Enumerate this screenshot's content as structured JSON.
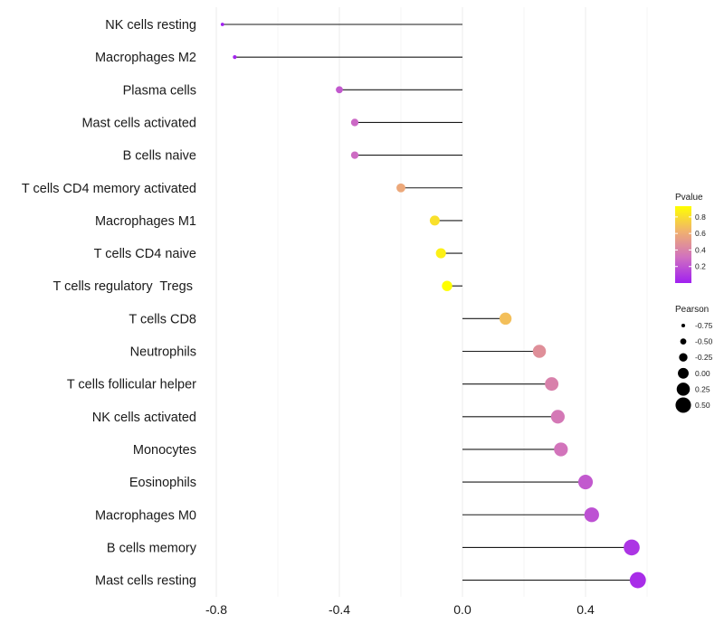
{
  "chart_data": {
    "type": "lollipop",
    "title": "",
    "xlabel": "",
    "ylabel": "",
    "xlim": [
      -0.8,
      0.58
    ],
    "xticks": [
      -0.8,
      -0.4,
      0.0,
      0.4
    ],
    "xtick_labels": [
      "-0.8",
      "-0.4",
      "0.0",
      "0.4"
    ],
    "grid": true,
    "points": [
      {
        "cell": "NK cells resting",
        "pearson": -0.78,
        "pvalue": 0.0
      },
      {
        "cell": "Macrophages M2",
        "pearson": -0.74,
        "pvalue": 0.02
      },
      {
        "cell": "Plasma cells",
        "pearson": -0.4,
        "pvalue": 0.22
      },
      {
        "cell": "Mast cells activated",
        "pearson": -0.35,
        "pvalue": 0.28
      },
      {
        "cell": "B cells naive",
        "pearson": -0.35,
        "pvalue": 0.29
      },
      {
        "cell": "T cells CD4 memory activated",
        "pearson": -0.2,
        "pvalue": 0.58
      },
      {
        "cell": "Macrophages M1",
        "pearson": -0.09,
        "pvalue": 0.81
      },
      {
        "cell": "T cells CD4 naive",
        "pearson": -0.07,
        "pvalue": 0.87
      },
      {
        "cell": "T cells regulatory  Tregs ",
        "pearson": -0.05,
        "pvalue": 0.93
      },
      {
        "cell": "T cells CD8",
        "pearson": 0.14,
        "pvalue": 0.68
      },
      {
        "cell": "Neutrophils",
        "pearson": 0.25,
        "pvalue": 0.46
      },
      {
        "cell": "T cells follicular helper",
        "pearson": 0.29,
        "pvalue": 0.39
      },
      {
        "cell": "NK cells activated",
        "pearson": 0.31,
        "pvalue": 0.35
      },
      {
        "cell": "Monocytes",
        "pearson": 0.32,
        "pvalue": 0.33
      },
      {
        "cell": "Eosinophils",
        "pearson": 0.4,
        "pvalue": 0.22
      },
      {
        "cell": "Macrophages M0",
        "pearson": 0.42,
        "pvalue": 0.19
      },
      {
        "cell": "B cells memory",
        "pearson": 0.55,
        "pvalue": 0.08
      },
      {
        "cell": "Mast cells resting",
        "pearson": 0.57,
        "pvalue": 0.05
      }
    ],
    "legend_color": {
      "title": "Pvalue",
      "ticks": [
        0.2,
        0.4,
        0.6,
        0.8
      ],
      "tick_labels": [
        "0.2",
        "0.4",
        "0.6",
        "0.8"
      ],
      "range": [
        0.0,
        0.93
      ],
      "stops": [
        "#a020f0",
        "#d070c0",
        "#f0b070",
        "#ffff00"
      ],
      "position": "right"
    },
    "legend_size": {
      "title": "Pearson",
      "values": [
        -0.75,
        -0.5,
        -0.25,
        0.0,
        0.25,
        0.5
      ],
      "labels": [
        "-0.75",
        "-0.50",
        "-0.25",
        "0.00",
        "0.25",
        "0.50"
      ],
      "position": "right"
    }
  }
}
